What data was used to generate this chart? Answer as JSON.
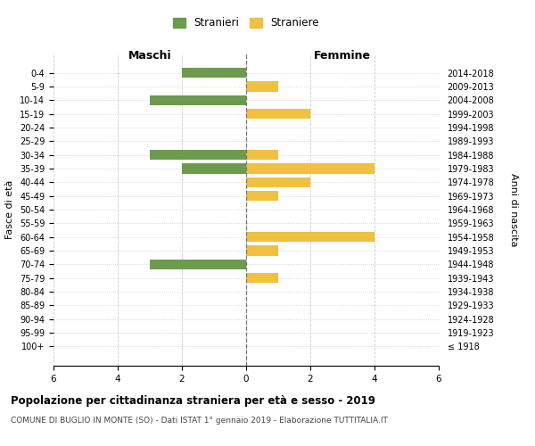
{
  "age_groups": [
    "0-4",
    "5-9",
    "10-14",
    "15-19",
    "20-24",
    "25-29",
    "30-34",
    "35-39",
    "40-44",
    "45-49",
    "50-54",
    "55-59",
    "60-64",
    "65-69",
    "70-74",
    "75-79",
    "80-84",
    "85-89",
    "90-94",
    "95-99",
    "100+"
  ],
  "birth_years": [
    "2014-2018",
    "2009-2013",
    "2004-2008",
    "1999-2003",
    "1994-1998",
    "1989-1993",
    "1984-1988",
    "1979-1983",
    "1974-1978",
    "1969-1973",
    "1964-1968",
    "1959-1963",
    "1954-1958",
    "1949-1953",
    "1944-1948",
    "1939-1943",
    "1934-1938",
    "1929-1933",
    "1924-1928",
    "1919-1923",
    "≤ 1918"
  ],
  "maschi": [
    2,
    0,
    3,
    0,
    0,
    0,
    3,
    2,
    0,
    0,
    0,
    0,
    0,
    0,
    3,
    0,
    0,
    0,
    0,
    0,
    0
  ],
  "femmine": [
    0,
    1,
    0,
    2,
    0,
    0,
    1,
    4,
    2,
    1,
    0,
    0,
    4,
    1,
    0,
    1,
    0,
    0,
    0,
    0,
    0
  ],
  "maschi_color": "#6d9b4e",
  "femmine_color": "#f0c040",
  "title": "Popolazione per cittadinanza straniera per età e sesso - 2019",
  "subtitle": "COMUNE DI BUGLIO IN MONTE (SO) - Dati ISTAT 1° gennaio 2019 - Elaborazione TUTTITALIA.IT",
  "xlabel_left": "Maschi",
  "xlabel_right": "Femmine",
  "ylabel_left": "Fasce di età",
  "ylabel_right": "Anni di nascita",
  "legend_stranieri": "Stranieri",
  "legend_straniere": "Straniere",
  "xlim": 6,
  "background_color": "#ffffff",
  "grid_color": "#cccccc"
}
